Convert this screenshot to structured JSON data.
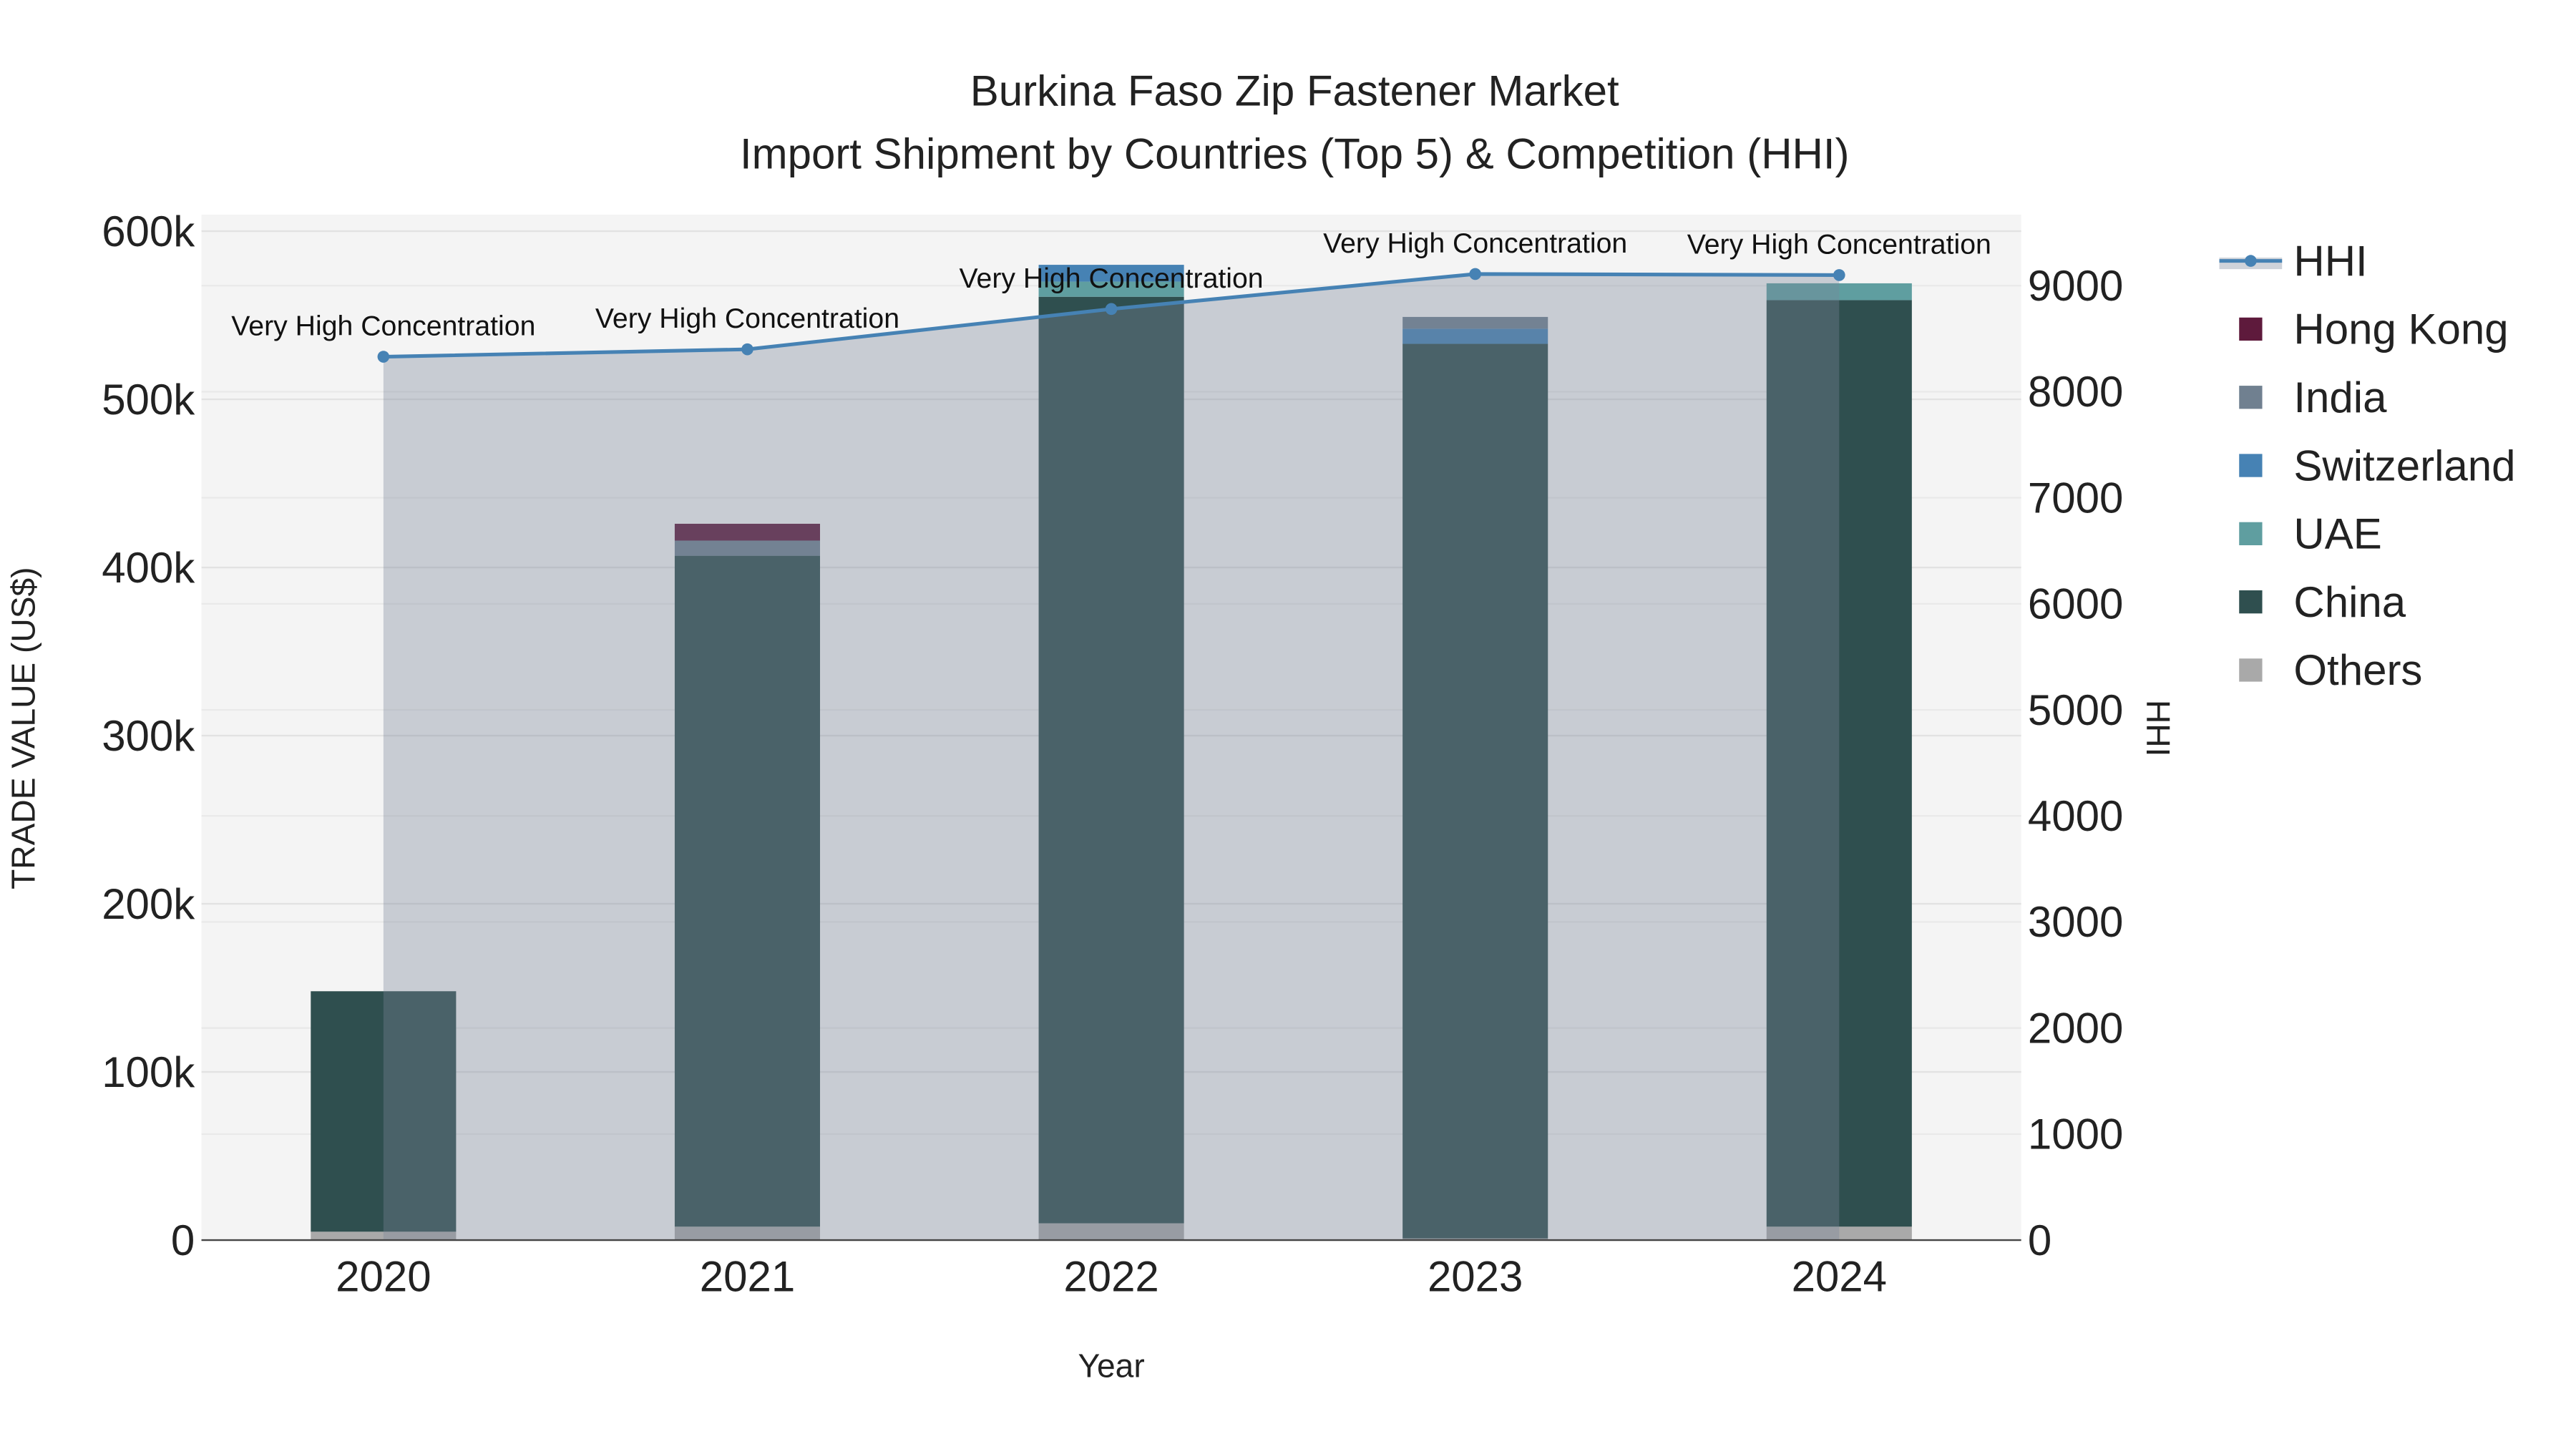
{
  "chart_data": {
    "type": "bar",
    "title": "Burkina Faso Zip Fastener Market",
    "subtitle": "Import Shipment by Countries (Top 5) & Competition (HHI)",
    "xlabel": "Year",
    "ylabel": "TRADE VALUE (US$)",
    "y2label": "HHI",
    "categories": [
      "2020",
      "2021",
      "2022",
      "2023",
      "2024"
    ],
    "ylim": [
      0,
      600000
    ],
    "y2lim": [
      0,
      9500
    ],
    "yticks": [
      0,
      100000,
      200000,
      300000,
      400000,
      500000,
      600000
    ],
    "ytick_labels": [
      "0",
      "100k",
      "200k",
      "300k",
      "400k",
      "500k",
      "600k"
    ],
    "y2ticks": [
      0,
      1000,
      2000,
      3000,
      4000,
      5000,
      6000,
      7000,
      8000,
      9000
    ],
    "y2tick_labels": [
      "0",
      "1000",
      "2000",
      "3000",
      "4000",
      "5000",
      "6000",
      "7000",
      "8000",
      "9000"
    ],
    "stacked": true,
    "series": [
      {
        "name": "Others",
        "color": "#a9a9a9",
        "values": [
          5000,
          8000,
          10000,
          1000,
          8000
        ]
      },
      {
        "name": "China",
        "color": "#2f4f4f",
        "values": [
          143000,
          399000,
          551000,
          532000,
          551000
        ]
      },
      {
        "name": "UAE",
        "color": "#5f9ea0",
        "values": [
          0,
          0,
          9000,
          0,
          10000
        ]
      },
      {
        "name": "Switzerland",
        "color": "#4682b4",
        "values": [
          0,
          0,
          10000,
          9000,
          0
        ]
      },
      {
        "name": "India",
        "color": "#708090",
        "values": [
          0,
          9000,
          0,
          7000,
          0
        ]
      },
      {
        "name": "Hong Kong",
        "color": "#5e1a3c",
        "values": [
          0,
          10000,
          0,
          0,
          0
        ]
      }
    ],
    "hhi": {
      "name": "HHI",
      "color": "#4682b4",
      "values": [
        8330,
        8400,
        8780,
        9110,
        9100
      ]
    },
    "annotations": [
      "Very High Concentration",
      "Very High Concentration",
      "Very High Concentration",
      "Very High Concentration",
      "Very High Concentration"
    ],
    "legend": [
      "HHI",
      "Hong Kong",
      "India",
      "Switzerland",
      "UAE",
      "China",
      "Others"
    ],
    "legend_position": "right",
    "grid": true
  }
}
